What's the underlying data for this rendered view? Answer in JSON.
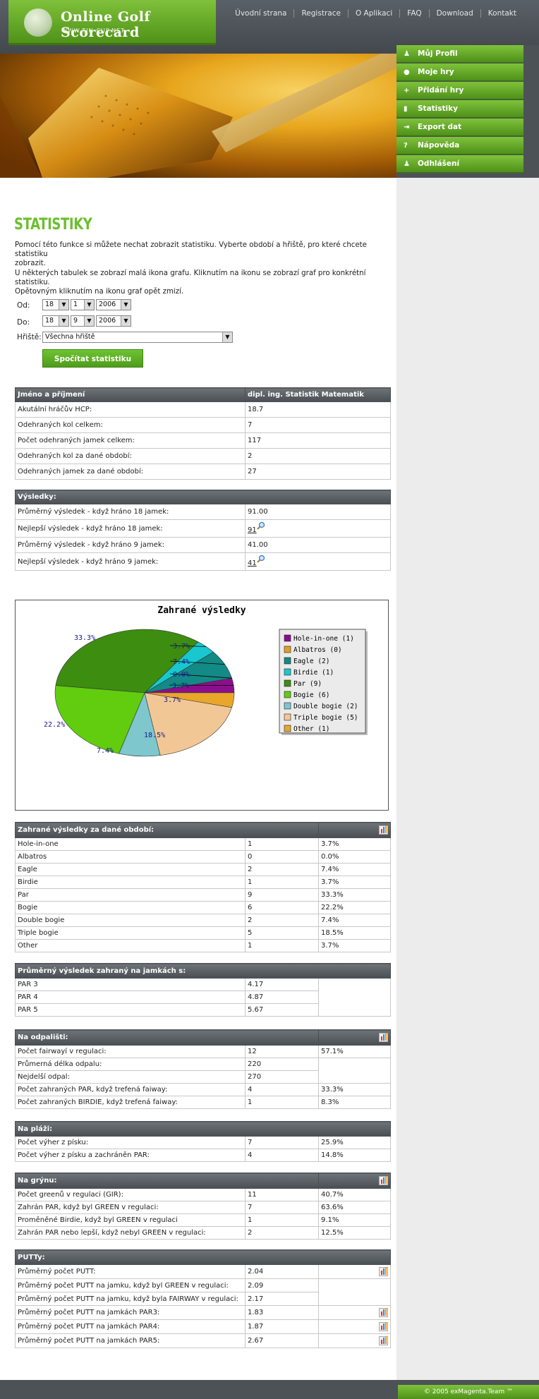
{
  "brand": {
    "title": "Online Golf Scorecard",
    "url": "WWW.TIN-CUP.NET"
  },
  "topnav": [
    "Úvodní strana",
    "Registrace",
    "O Aplikaci",
    "FAQ",
    "Download",
    "Kontakt"
  ],
  "sidenav": [
    {
      "label": "Můj Profil",
      "icon": "user-icon"
    },
    {
      "label": "Moje hry",
      "icon": "golf-ball-icon"
    },
    {
      "label": "Přidání hry",
      "icon": "plus-icon"
    },
    {
      "label": "Statistiky",
      "icon": "chart-icon"
    },
    {
      "label": "Export dat",
      "icon": "export-icon"
    },
    {
      "label": "Nápověda",
      "icon": "help-icon"
    },
    {
      "label": "Odhlášení",
      "icon": "logout-icon"
    }
  ],
  "page": {
    "title": "STATISTIKY",
    "intro1": "Pomocí této funkce si můžete nechat zobrazit statistiku. Vyberte období a hřiště, pro které chcete statistiku",
    "intro1b": "zobrazit.",
    "intro2": "U některých tabulek se zobrazí malá ikona grafu. Kliknutím na ikonu se zobrazí graf pro konkrétní statistiku.",
    "intro2b": "Opětovným kliknutím na ikonu graf opět zmizí."
  },
  "form": {
    "from_label": "Od:",
    "to_label": "Do:",
    "course_label": "Hřiště:",
    "from": {
      "day": "18",
      "month": "1",
      "year": "2006"
    },
    "to": {
      "day": "18",
      "month": "9",
      "year": "2006"
    },
    "course": "Všechna hřiště",
    "submit": "Spočítat statistiku"
  },
  "player": {
    "header": [
      "Jméno a příjmení",
      "dipl. ing. Statistik Matematik"
    ],
    "rows": [
      [
        "Akutální hráčův HCP:",
        "18.7"
      ],
      [
        "Odehraných kol celkem:",
        "7"
      ],
      [
        "Počet odehraných jamek celkem:",
        "117"
      ],
      [
        "Odehraných kol za dané období:",
        "2"
      ],
      [
        "Odehraných jamek za dané období:",
        "27"
      ]
    ]
  },
  "results": {
    "header": "Výsledky:",
    "rows": [
      [
        "Průměrný výsledek - když hráno 18 jamek:",
        "91.00"
      ],
      [
        "Nejlepší výsledek - když hráno 18 jamek:",
        "91"
      ],
      [
        "Průměrný výsledek - když hráno 9 jamek:",
        "41.00"
      ],
      [
        "Nejlepší výsledek - když hráno 9 jamek:",
        "41"
      ]
    ]
  },
  "chart_data": {
    "type": "pie",
    "title": "Zahrané výsledky",
    "categories": [
      "Hole-in-one",
      "Albatros",
      "Eagle",
      "Birdie",
      "Par",
      "Bogie",
      "Double bogie",
      "Triple bogie",
      "Other"
    ],
    "values": [
      1,
      0,
      2,
      1,
      9,
      6,
      2,
      5,
      1
    ],
    "legend": [
      "Hole-in-one (1)",
      "Albatros (0)",
      "Eagle (2)",
      "Birdie (1)",
      "Par (9)",
      "Bogie (6)",
      "Double bogie (2)",
      "Triple bogie (5)",
      "Other (1)"
    ],
    "labels": [
      "3.7%",
      "0.0%",
      "7.4%",
      "3.7%",
      "33.3%",
      "22.2%",
      "7.4%",
      "18.5%",
      "3.7%"
    ],
    "colors": [
      "#8b0f8c",
      "#e0a020",
      "#138a86",
      "#19c8cf",
      "#3d8d11",
      "#62cc0e",
      "#7dc7cd",
      "#f2c796",
      "#e9a72a"
    ],
    "legend_position": "right"
  },
  "scores": {
    "header": "Zahrané výsledky za dané období:",
    "rows": [
      [
        "Hole-in-one",
        "1",
        "3.7%"
      ],
      [
        "Albatros",
        "0",
        "0.0%"
      ],
      [
        "Eagle",
        "2",
        "7.4%"
      ],
      [
        "Birdie",
        "1",
        "3.7%"
      ],
      [
        "Par",
        "9",
        "33.3%"
      ],
      [
        "Bogie",
        "6",
        "22.2%"
      ],
      [
        "Double bogie",
        "2",
        "7.4%"
      ],
      [
        "Triple bogie",
        "5",
        "18.5%"
      ],
      [
        "Other",
        "1",
        "3.7%"
      ]
    ]
  },
  "par": {
    "header": "Průměrný výsledek zahraný na jamkách s:",
    "rows": [
      [
        "PAR 3",
        "4.17"
      ],
      [
        "PAR 4",
        "4.87"
      ],
      [
        "PAR 5",
        "5.67"
      ]
    ]
  },
  "tee": {
    "header": "Na odpališti:",
    "rows": [
      [
        "Počet fairwayí v regulaci:",
        "12",
        "57.1%"
      ],
      [
        "Průmerná délka odpalu:",
        "220",
        ""
      ],
      [
        "Nejdelší odpal:",
        "270",
        ""
      ],
      [
        "Počet zahraných PAR, když trefená faiway:",
        "4",
        "33.3%"
      ],
      [
        "Počet zahraných BIRDIE, když trefená faiway:",
        "1",
        "8.3%"
      ]
    ]
  },
  "beach": {
    "header": "Na pláži:",
    "rows": [
      [
        "Počet výher z písku:",
        "7",
        "25.9%"
      ],
      [
        "Počet výher z písku a zachráněn PAR:",
        "4",
        "14.8%"
      ]
    ]
  },
  "green": {
    "header": "Na grýnu:",
    "rows": [
      [
        "Počet greenů v regulaci (GIR):",
        "11",
        "40.7%"
      ],
      [
        "Zahrán PAR, když byl GREEN v regulaci:",
        "7",
        "63.6%"
      ],
      [
        "Proměněné Birdie, když byl GREEN v regulaci",
        "1",
        "9.1%"
      ],
      [
        "Zahrán PAR nebo lepší, když nebyl GREEN v regulaci:",
        "2",
        "12.5%"
      ]
    ]
  },
  "putt": {
    "header": "PUTTy:",
    "rows": [
      [
        "Průměrný počet PUTT:",
        "2.04"
      ],
      [
        "Průměrný počet PUTT na jamku, když byl GREEN v regulaci:",
        "2.09"
      ],
      [
        "Průměrný počet PUTT na jamku, když byla FAIRWAY v regulaci:",
        "2.17"
      ],
      [
        "Průměrný počet PUTT na jamkách PAR3:",
        "1.83"
      ],
      [
        "Průměrný počet PUTT na jamkách PAR4:",
        "1.87"
      ],
      [
        "Průměrný počet PUTT na jamkách PAR5:",
        "2.67"
      ]
    ]
  },
  "footer": "© 2005 exMagenta.Team ™"
}
